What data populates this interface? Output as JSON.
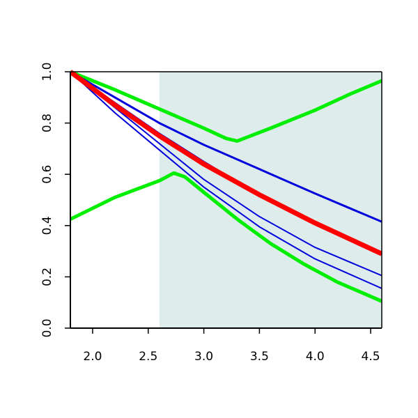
{
  "chart_data": {
    "type": "line",
    "title": "",
    "xlabel": "",
    "ylabel": "",
    "xlim": [
      1.8,
      4.6
    ],
    "ylim": [
      0.0,
      1.0
    ],
    "x_ticks": [
      2.0,
      2.5,
      3.0,
      3.5,
      4.0,
      4.5
    ],
    "x_tick_labels": [
      "2.0",
      "2.5",
      "3.0",
      "3.5",
      "4.0",
      "4.5"
    ],
    "y_ticks": [
      0.0,
      0.2,
      0.4,
      0.6,
      0.8,
      1.0
    ],
    "y_tick_labels": [
      "0.0",
      "0.2",
      "0.4",
      "0.6",
      "0.8",
      "1.0"
    ],
    "grid": false,
    "legend": "none",
    "shaded_region": {
      "x_from": 2.6,
      "x_to": 4.6,
      "color": "#dfecec"
    },
    "series": [
      {
        "color": "#00ee00",
        "width": "thick",
        "points": [
          [
            1.8,
            1.0
          ],
          [
            2.2,
            0.93
          ],
          [
            2.6,
            0.855
          ],
          [
            3.0,
            0.78
          ],
          [
            3.2,
            0.74
          ],
          [
            3.3,
            0.73
          ],
          [
            3.6,
            0.78
          ],
          [
            4.0,
            0.85
          ],
          [
            4.3,
            0.91
          ],
          [
            4.6,
            0.965
          ]
        ]
      },
      {
        "color": "#00ee00",
        "width": "thick",
        "points": [
          [
            1.8,
            0.425
          ],
          [
            2.2,
            0.51
          ],
          [
            2.6,
            0.575
          ],
          [
            2.73,
            0.605
          ],
          [
            2.83,
            0.59
          ],
          [
            3.0,
            0.53
          ],
          [
            3.3,
            0.425
          ],
          [
            3.6,
            0.33
          ],
          [
            3.9,
            0.25
          ],
          [
            4.2,
            0.18
          ],
          [
            4.6,
            0.105
          ]
        ]
      },
      {
        "color": "#0000dd",
        "width": "medium",
        "points": [
          [
            1.8,
            1.0
          ],
          [
            2.2,
            0.9
          ],
          [
            2.6,
            0.8
          ],
          [
            3.0,
            0.715
          ],
          [
            3.5,
            0.62
          ],
          [
            4.0,
            0.525
          ],
          [
            4.6,
            0.415
          ]
        ]
      },
      {
        "color": "#0000dd",
        "width": "thin",
        "points": [
          [
            1.8,
            1.0
          ],
          [
            2.2,
            0.88
          ],
          [
            2.6,
            0.76
          ],
          [
            3.0,
            0.65
          ],
          [
            3.5,
            0.52
          ],
          [
            4.0,
            0.41
          ],
          [
            4.6,
            0.295
          ]
        ]
      },
      {
        "color": "#0000dd",
        "width": "thin",
        "points": [
          [
            1.8,
            1.0
          ],
          [
            2.2,
            0.86
          ],
          [
            2.6,
            0.72
          ],
          [
            3.0,
            0.58
          ],
          [
            3.5,
            0.435
          ],
          [
            4.0,
            0.315
          ],
          [
            4.6,
            0.205
          ]
        ]
      },
      {
        "color": "#0000dd",
        "width": "thin",
        "points": [
          [
            1.8,
            1.0
          ],
          [
            2.2,
            0.84
          ],
          [
            2.6,
            0.695
          ],
          [
            3.0,
            0.55
          ],
          [
            3.5,
            0.395
          ],
          [
            4.0,
            0.27
          ],
          [
            4.6,
            0.155
          ]
        ]
      },
      {
        "color": "#ff0000",
        "width": "extra-thick",
        "points": [
          [
            1.8,
            1.0
          ],
          [
            2.2,
            0.87
          ],
          [
            2.6,
            0.75
          ],
          [
            3.0,
            0.64
          ],
          [
            3.5,
            0.52
          ],
          [
            4.0,
            0.41
          ],
          [
            4.6,
            0.29
          ]
        ]
      }
    ]
  }
}
